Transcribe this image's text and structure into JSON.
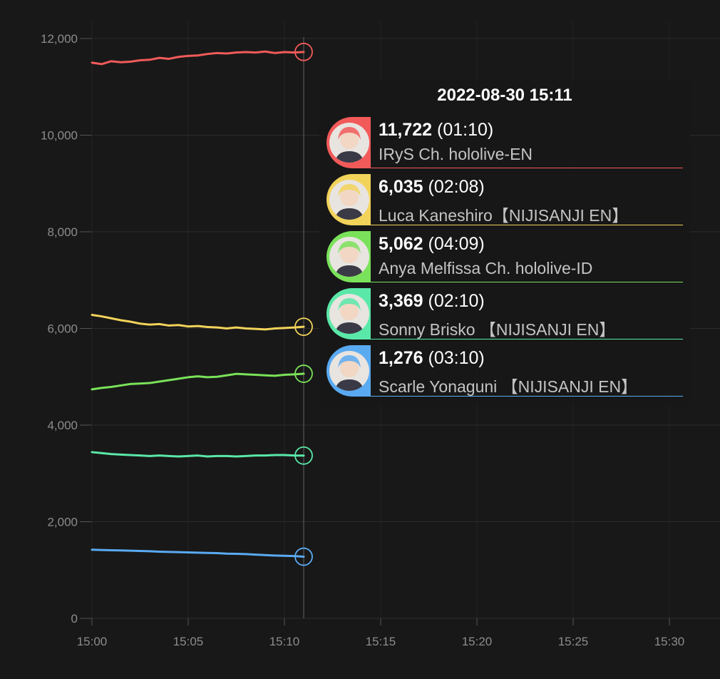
{
  "chart_data": {
    "type": "line",
    "tooltip_title": "2022-08-30 15:11",
    "x_ticks": [
      "15:00",
      "15:05",
      "15:10",
      "15:15",
      "15:20",
      "15:25",
      "15:30"
    ],
    "y_ticks": [
      "0",
      "2,000",
      "4,000",
      "6,000",
      "8,000",
      "10,000",
      "12,000"
    ],
    "xlim_minutes": [
      0,
      31
    ],
    "ylim": [
      0,
      12000
    ],
    "grid": true,
    "x_minutes": [
      0,
      0.5,
      1,
      1.5,
      2,
      2.5,
      3,
      3.5,
      4,
      4.5,
      5,
      5.5,
      6,
      6.5,
      7,
      7.5,
      8,
      8.5,
      9,
      9.5,
      10,
      10.5,
      11
    ],
    "series": [
      {
        "name": "IRyS Ch. hololive-EN",
        "color": "#f25a5a",
        "values": [
          11500,
          11470,
          11530,
          11510,
          11520,
          11550,
          11560,
          11600,
          11580,
          11620,
          11640,
          11650,
          11680,
          11700,
          11690,
          11710,
          11720,
          11710,
          11730,
          11700,
          11720,
          11710,
          11722
        ],
        "tooltip_value": "11,722",
        "tooltip_duration": "(01:10)",
        "tooltip_name": "IRyS Ch. hololive-EN"
      },
      {
        "name": "Luca Kaneshiro【NIJISANJI EN】",
        "color": "#f2d35a",
        "values": [
          6280,
          6250,
          6210,
          6170,
          6140,
          6100,
          6080,
          6090,
          6060,
          6070,
          6040,
          6050,
          6030,
          6020,
          6000,
          6020,
          6000,
          5990,
          5980,
          6000,
          6010,
          6020,
          6035
        ],
        "tooltip_value": "6,035",
        "tooltip_duration": "(02:08)",
        "tooltip_name": "Luca Kaneshiro【NIJISANJI EN】"
      },
      {
        "name": "Anya Melfissa Ch. hololive-ID",
        "color": "#7ae25a",
        "values": [
          4740,
          4770,
          4790,
          4820,
          4850,
          4860,
          4870,
          4900,
          4930,
          4960,
          4990,
          5010,
          4990,
          5000,
          5030,
          5060,
          5050,
          5040,
          5030,
          5020,
          5040,
          5050,
          5062
        ],
        "tooltip_value": "5,062",
        "tooltip_duration": "(04:09)",
        "tooltip_name": "Anya Melfissa Ch. hololive-ID"
      },
      {
        "name": "Sonny Brisko 【NIJISANJI EN】",
        "color": "#5ae8a8",
        "values": [
          3440,
          3420,
          3400,
          3390,
          3380,
          3370,
          3360,
          3370,
          3360,
          3350,
          3360,
          3370,
          3350,
          3360,
          3360,
          3350,
          3360,
          3370,
          3370,
          3380,
          3380,
          3370,
          3369
        ],
        "tooltip_value": "3,369",
        "tooltip_duration": "(02:10)",
        "tooltip_name": "Sonny Brisko 【NIJISANJI EN】"
      },
      {
        "name": "Scarle Yonaguni 【NIJISANJI EN】",
        "color": "#5aaaf2",
        "values": [
          1420,
          1415,
          1410,
          1405,
          1400,
          1395,
          1390,
          1380,
          1375,
          1370,
          1365,
          1360,
          1355,
          1350,
          1340,
          1335,
          1330,
          1320,
          1310,
          1300,
          1295,
          1290,
          1276
        ],
        "tooltip_value": "1,276",
        "tooltip_duration": "(03:10)",
        "tooltip_name": "Scarle Yonaguni 【NIJISANJI EN】"
      }
    ]
  }
}
